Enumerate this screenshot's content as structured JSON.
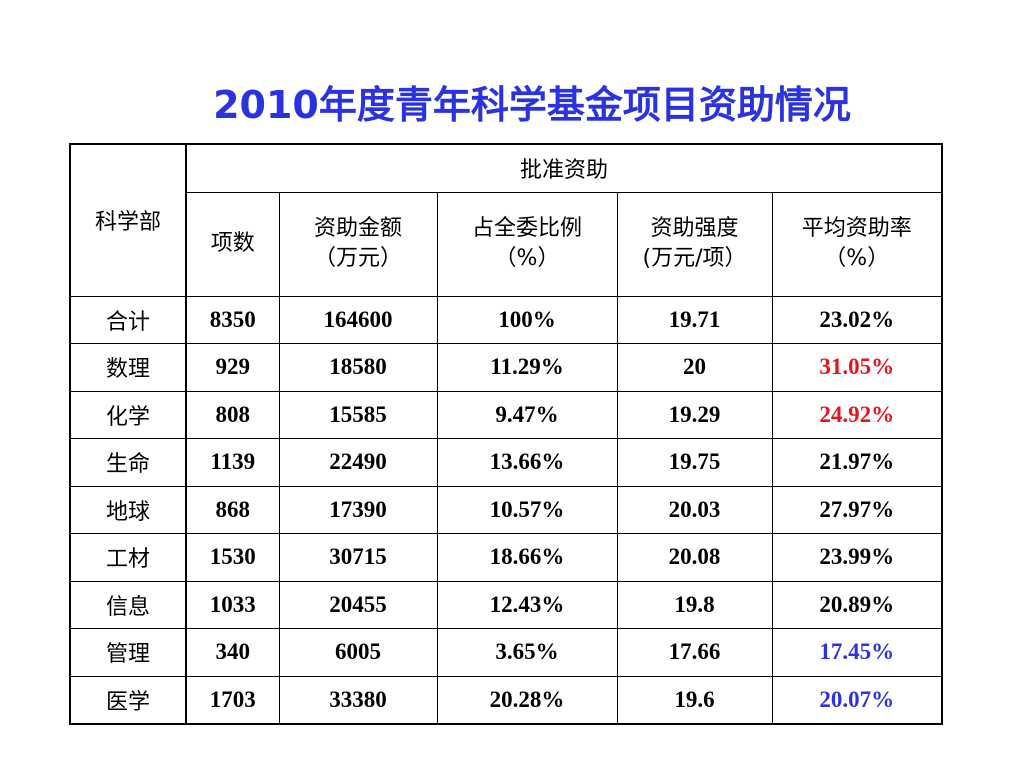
{
  "title": "2010年度青年科学基金项目资助情况",
  "table": {
    "row_header": "科学部",
    "group_header": "批准资助",
    "columns": [
      {
        "line1": "项数",
        "line2": ""
      },
      {
        "line1": "资助金额",
        "line2": "（万元）"
      },
      {
        "line1": "占全委比例",
        "line2": "（%）"
      },
      {
        "line1": "资助强度",
        "line2": "(万元/项）"
      },
      {
        "line1": "平均资助率",
        "line2": "（%）"
      }
    ],
    "rows": [
      {
        "dept": "合计",
        "count": "8350",
        "amount": "164600",
        "ratio": "100%",
        "intensity": "19.71",
        "rate": "23.02%",
        "rate_color": "#000000"
      },
      {
        "dept": "数理",
        "count": "929",
        "amount": "18580",
        "ratio": "11.29%",
        "intensity": "20",
        "rate": "31.05%",
        "rate_color": "#e8141b"
      },
      {
        "dept": "化学",
        "count": "808",
        "amount": "15585",
        "ratio": "9.47%",
        "intensity": "19.29",
        "rate": "24.92%",
        "rate_color": "#e8141b"
      },
      {
        "dept": "生命",
        "count": "1139",
        "amount": "22490",
        "ratio": "13.66%",
        "intensity": "19.75",
        "rate": "21.97%",
        "rate_color": "#000000"
      },
      {
        "dept": "地球",
        "count": "868",
        "amount": "17390",
        "ratio": "10.57%",
        "intensity": "20.03",
        "rate": "27.97%",
        "rate_color": "#000000"
      },
      {
        "dept": "工材",
        "count": "1530",
        "amount": "30715",
        "ratio": "18.66%",
        "intensity": "20.08",
        "rate": "23.99%",
        "rate_color": "#000000"
      },
      {
        "dept": "信息",
        "count": "1033",
        "amount": "20455",
        "ratio": "12.43%",
        "intensity": "19.8",
        "rate": "20.89%",
        "rate_color": "#000000"
      },
      {
        "dept": "管理",
        "count": "340",
        "amount": "6005",
        "ratio": "3.65%",
        "intensity": "17.66",
        "rate": "17.45%",
        "rate_color": "#2b33e0"
      },
      {
        "dept": "医学",
        "count": "1703",
        "amount": "33380",
        "ratio": "20.28%",
        "intensity": "19.6",
        "rate": "20.07%",
        "rate_color": "#2b33e0"
      }
    ]
  }
}
